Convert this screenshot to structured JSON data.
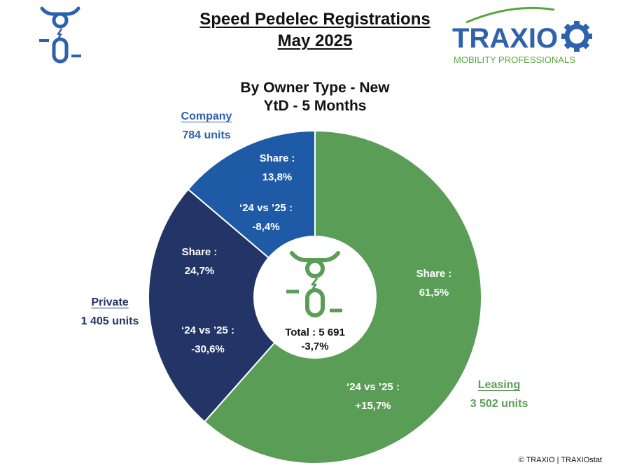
{
  "header": {
    "title_line1": "Speed Pedelec Registrations",
    "title_line2": "May 2025"
  },
  "logo": {
    "brand": "TRAXIO",
    "tagline": "MOBILITY PROFESSIONALS",
    "icon": "scooter-rider-icon"
  },
  "chart_data": {
    "type": "pie",
    "style": "donut",
    "title_line1": "By Owner Type - New",
    "title_line2": "YtD - 5 Months",
    "center": {
      "total_label": "Total : 5 691",
      "total": 5691,
      "change": "-3,7%"
    },
    "share_label": "Share :",
    "change_label": "‘24 vs ’25 :",
    "slices": [
      {
        "name": "Leasing",
        "units": 3502,
        "units_label": "3 502 units",
        "share": 61.5,
        "share_label": "61,5%",
        "change": 15.7,
        "change_label": "+15,7%",
        "color": "#5a9d57",
        "label_color": "#5a9d57"
      },
      {
        "name": "Private",
        "units": 1405,
        "units_label": "1 405 units",
        "share": 24.7,
        "share_label": "24,7%",
        "change": -30.6,
        "change_label": "-30,6%",
        "color": "#233466",
        "label_color": "#233466"
      },
      {
        "name": "Company",
        "units": 784,
        "units_label": "784 units",
        "share": 13.8,
        "share_label": "13,8%",
        "change": -8.4,
        "change_label": "-8,4%",
        "color": "#1f5aa7",
        "label_color": "#2e62ad"
      }
    ]
  },
  "footer": {
    "copyright": "© TRAXIO | TRAXIOstat"
  },
  "colors": {
    "brand_blue": "#2e62ad",
    "brand_green": "#5aa63c",
    "icon_blue": "#2a62ad",
    "icon_green": "#5a9d57"
  }
}
